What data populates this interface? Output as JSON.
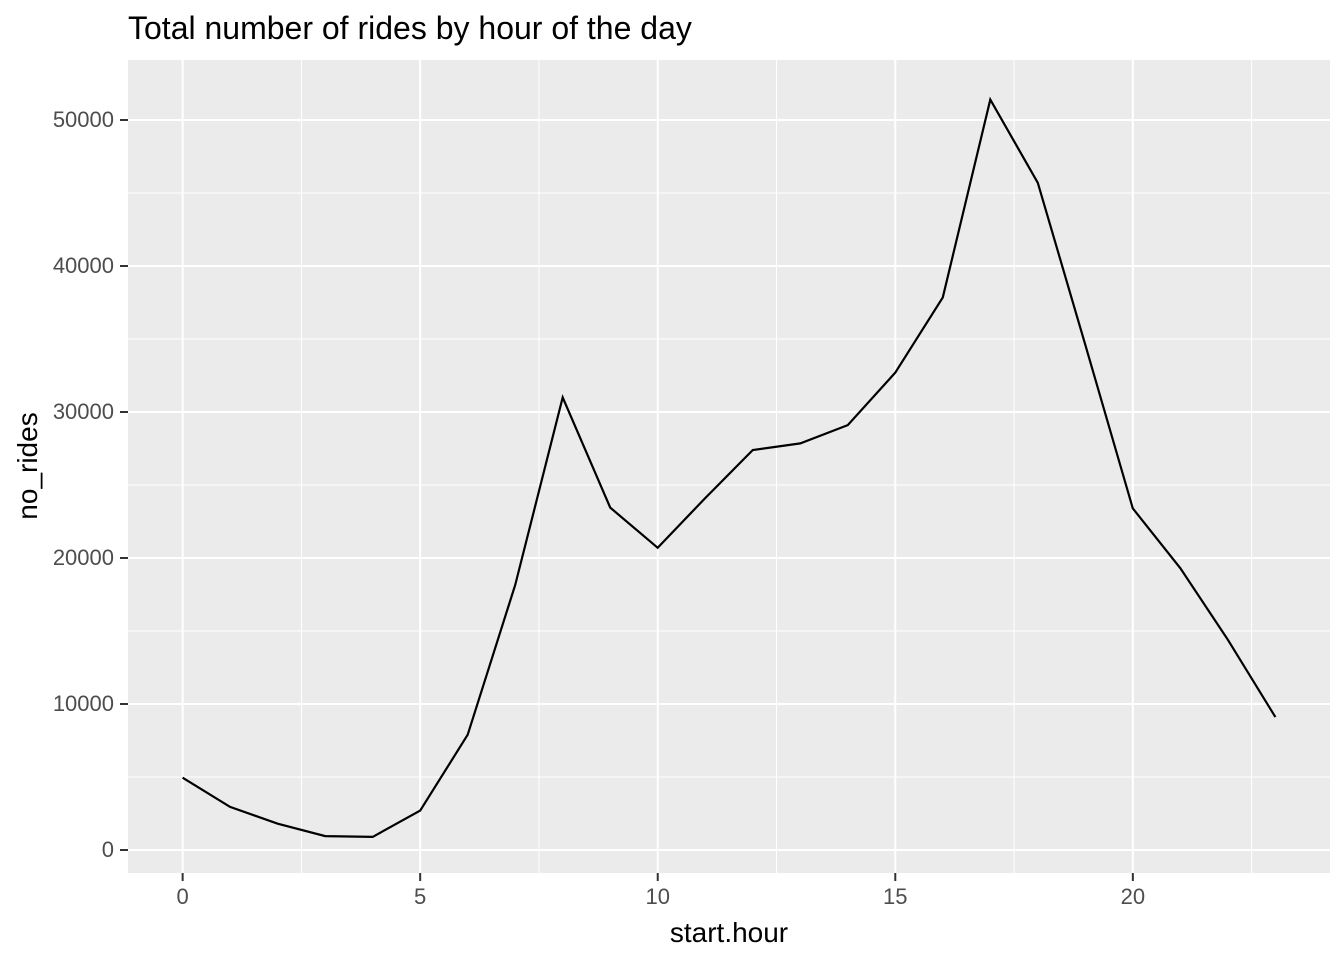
{
  "chart_data": {
    "type": "line",
    "title": "Total number of rides by hour of the day",
    "xlabel": "start.hour",
    "ylabel": "no_rides",
    "series_name": "no_rides",
    "x": [
      0,
      1,
      2,
      3,
      4,
      5,
      6,
      7,
      8,
      9,
      10,
      11,
      12,
      13,
      14,
      15,
      16,
      17,
      18,
      19,
      20,
      21,
      22,
      23
    ],
    "values": [
      4950,
      2950,
      1800,
      950,
      900,
      2700,
      7900,
      18150,
      31000,
      23450,
      20700,
      24100,
      27400,
      27850,
      29100,
      32700,
      37850,
      51400,
      45700,
      34600,
      23400,
      19300,
      14400,
      9100
    ],
    "x_ticks": {
      "values": [
        0,
        5,
        10,
        15,
        20
      ],
      "labels": [
        "0",
        "5",
        "10",
        "15",
        "20"
      ],
      "minor": [
        2.5,
        7.5,
        12.5,
        17.5,
        22.5
      ]
    },
    "y_ticks": {
      "values": [
        0,
        10000,
        20000,
        30000,
        40000,
        50000
      ],
      "labels": [
        "0",
        "10000",
        "20000",
        "30000",
        "40000",
        "50000"
      ],
      "minor": [
        5000,
        15000,
        25000,
        35000,
        45000
      ]
    },
    "xlim": [
      -1.15,
      24.15
    ],
    "ylim": [
      -1575,
      54110
    ],
    "grid": true,
    "legend_position": "none",
    "style": {
      "panel_bg": "#EBEBEB",
      "grid_color": "#FFFFFF",
      "line_color": "#000000",
      "tick_color": "#333333",
      "axis_text_color": "#4D4D4D",
      "axis_title_color": "#000000",
      "title_color": "#000000",
      "background": "#FFFFFF"
    }
  }
}
